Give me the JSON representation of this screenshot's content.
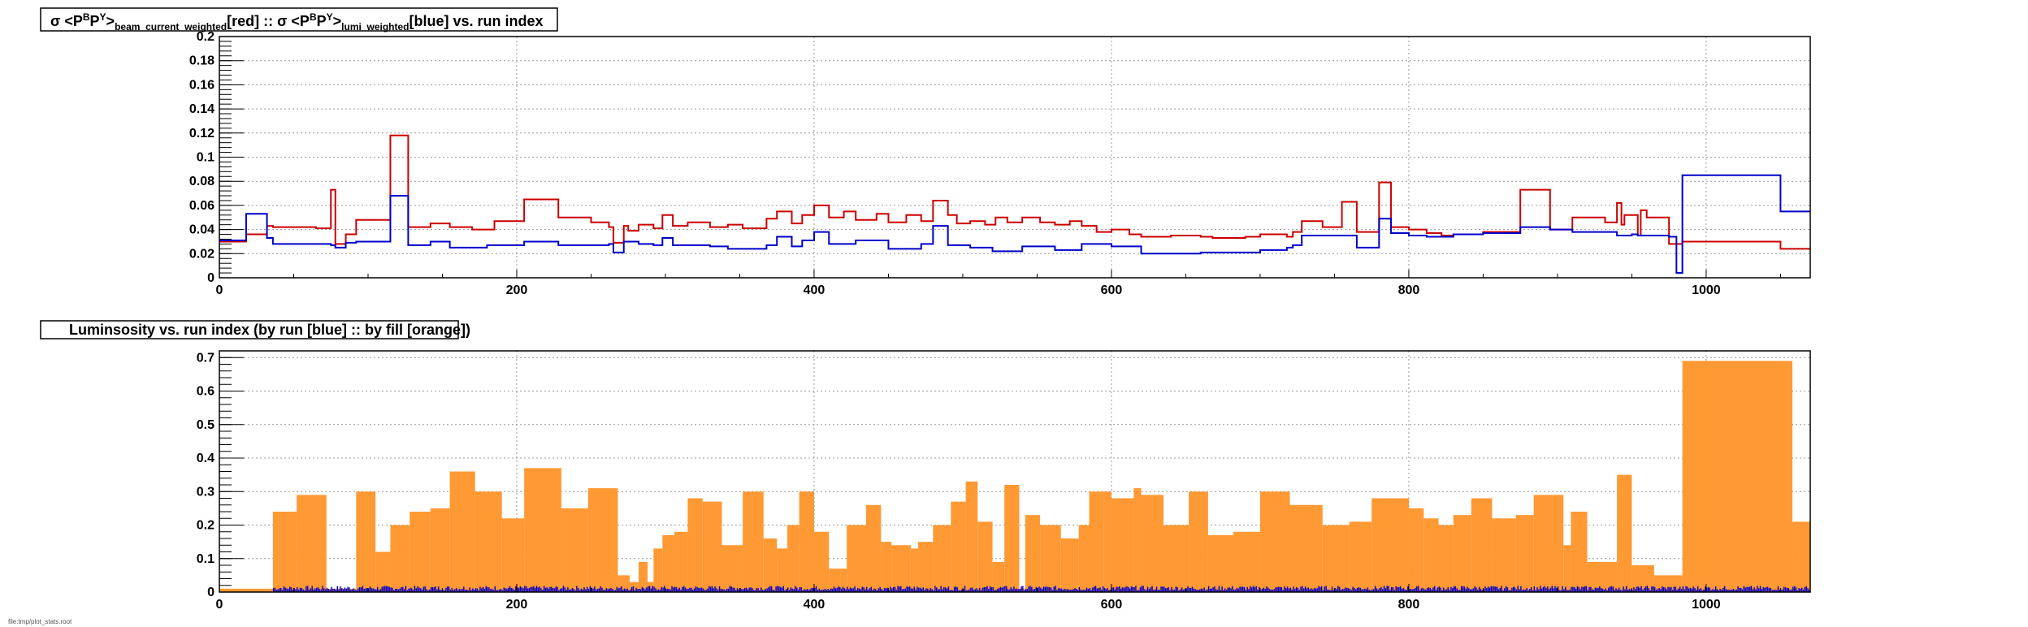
{
  "chart_data": [
    {
      "type": "line",
      "title_parts": {
        "sigma": "σ <P",
        "sup_b": "B",
        "mid": "P",
        "sup_y": "Y",
        "close1": ">",
        "sub1": "beam_current_weighted",
        "part2": "[red] :: σ <P",
        "close2": ">",
        "sub2": "lumi_weighted",
        "part3": "[blue] vs. run index"
      },
      "xlim": [
        0,
        1070
      ],
      "ylim": [
        0,
        0.2
      ],
      "x_ticks": [
        "0",
        "200",
        "400",
        "600",
        "800",
        "1000"
      ],
      "y_ticks": [
        "0",
        "0.02",
        "0.04",
        "0.06",
        "0.08",
        "0.1",
        "0.12",
        "0.14",
        "0.16",
        "0.18",
        "0.2"
      ],
      "grid": true,
      "series": [
        {
          "color": "#cc0000",
          "x": [
            0,
            18,
            32,
            36,
            50,
            65,
            75,
            78,
            85,
            92,
            115,
            127,
            142,
            155,
            170,
            185,
            205,
            228,
            250,
            262,
            265,
            272,
            275,
            282,
            292,
            298,
            305,
            315,
            330,
            342,
            352,
            368,
            375,
            385,
            392,
            400,
            410,
            420,
            428,
            442,
            450,
            462,
            472,
            480,
            490,
            496,
            505,
            515,
            522,
            530,
            540,
            552,
            562,
            572,
            580,
            590,
            600,
            612,
            620,
            640,
            660,
            668,
            690,
            700,
            718,
            722,
            728,
            742,
            755,
            765,
            780,
            788,
            800,
            812,
            822,
            830,
            850,
            875,
            895,
            910,
            932,
            940,
            943,
            945,
            954,
            956,
            960,
            975,
            978,
            984,
            990,
            1050,
            1070
          ],
          "y": [
            0.03,
            0.036,
            0.043,
            0.042,
            0.042,
            0.041,
            0.073,
            0.028,
            0.036,
            0.048,
            0.118,
            0.042,
            0.045,
            0.042,
            0.04,
            0.047,
            0.065,
            0.05,
            0.046,
            0.042,
            0.029,
            0.043,
            0.039,
            0.044,
            0.041,
            0.052,
            0.043,
            0.046,
            0.042,
            0.044,
            0.041,
            0.049,
            0.055,
            0.045,
            0.052,
            0.06,
            0.05,
            0.055,
            0.048,
            0.053,
            0.046,
            0.052,
            0.047,
            0.064,
            0.052,
            0.045,
            0.047,
            0.044,
            0.05,
            0.046,
            0.05,
            0.046,
            0.044,
            0.047,
            0.043,
            0.038,
            0.04,
            0.036,
            0.034,
            0.035,
            0.034,
            0.033,
            0.034,
            0.036,
            0.034,
            0.038,
            0.047,
            0.042,
            0.063,
            0.038,
            0.079,
            0.042,
            0.04,
            0.037,
            0.035,
            0.036,
            0.038,
            0.073,
            0.04,
            0.05,
            0.046,
            0.062,
            0.044,
            0.052,
            0.035,
            0.056,
            0.05,
            0.028,
            0.028,
            0.03,
            0.03,
            0.024,
            0.024
          ]
        },
        {
          "color": "#0000cc",
          "x": [
            0,
            18,
            32,
            36,
            75,
            78,
            85,
            92,
            115,
            127,
            142,
            155,
            180,
            205,
            228,
            262,
            265,
            272,
            282,
            292,
            298,
            305,
            330,
            342,
            368,
            375,
            385,
            392,
            400,
            410,
            428,
            450,
            472,
            480,
            490,
            505,
            520,
            540,
            562,
            580,
            600,
            620,
            660,
            700,
            718,
            722,
            728,
            765,
            780,
            788,
            800,
            812,
            830,
            850,
            875,
            895,
            910,
            940,
            950,
            954,
            975,
            980,
            984,
            990,
            1050,
            1070
          ],
          "y": [
            0.031,
            0.053,
            0.033,
            0.028,
            0.027,
            0.025,
            0.029,
            0.03,
            0.068,
            0.027,
            0.03,
            0.025,
            0.027,
            0.03,
            0.027,
            0.028,
            0.021,
            0.03,
            0.028,
            0.027,
            0.033,
            0.027,
            0.026,
            0.024,
            0.027,
            0.034,
            0.026,
            0.031,
            0.038,
            0.028,
            0.031,
            0.024,
            0.028,
            0.043,
            0.027,
            0.025,
            0.022,
            0.026,
            0.023,
            0.028,
            0.026,
            0.02,
            0.021,
            0.023,
            0.025,
            0.027,
            0.035,
            0.025,
            0.049,
            0.037,
            0.035,
            0.034,
            0.036,
            0.037,
            0.042,
            0.04,
            0.038,
            0.035,
            0.036,
            0.035,
            0.034,
            0.004,
            0.085,
            0.085,
            0.055,
            0.055
          ]
        }
      ]
    },
    {
      "type": "bar",
      "title": "Luminsosity vs. run index (by run [blue] :: by fill [orange])",
      "xlim": [
        0,
        1070
      ],
      "ylim": [
        0,
        0.72
      ],
      "x_ticks": [
        "0",
        "200",
        "400",
        "600",
        "800",
        "1000"
      ],
      "y_ticks": [
        "0",
        "0.1",
        "0.2",
        "0.3",
        "0.4",
        "0.5",
        "0.6",
        "0.7"
      ],
      "grid": true,
      "series": [
        {
          "name": "by fill",
          "color": "#ff9933",
          "x0": [
            0,
            36,
            52,
            72,
            77,
            92,
            105,
            115,
            128,
            142,
            155,
            172,
            190,
            205,
            230,
            248,
            268,
            276,
            282,
            288,
            292,
            298,
            306,
            315,
            325,
            338,
            352,
            366,
            375,
            382,
            390,
            400,
            410,
            418,
            422,
            435,
            445,
            452,
            465,
            470,
            480,
            492,
            502,
            510,
            520,
            528,
            538,
            542,
            552,
            566,
            578,
            582,
            585,
            595,
            600,
            615,
            620,
            635,
            652,
            665,
            682,
            700,
            720,
            742,
            760,
            775,
            800,
            810,
            820,
            830,
            842,
            856,
            872,
            884,
            904,
            909,
            920,
            940,
            950,
            965,
            984,
            1058,
            1070
          ],
          "x1": [
            36,
            52,
            72,
            77,
            92,
            105,
            115,
            128,
            142,
            155,
            172,
            190,
            205,
            230,
            248,
            268,
            276,
            282,
            288,
            292,
            298,
            306,
            315,
            325,
            338,
            352,
            366,
            375,
            382,
            390,
            400,
            410,
            418,
            422,
            435,
            445,
            452,
            465,
            470,
            480,
            492,
            502,
            510,
            520,
            528,
            538,
            542,
            552,
            566,
            578,
            582,
            585,
            595,
            600,
            615,
            620,
            635,
            652,
            665,
            682,
            700,
            720,
            742,
            760,
            775,
            800,
            810,
            820,
            830,
            842,
            856,
            872,
            884,
            904,
            909,
            920,
            940,
            950,
            965,
            984,
            1058,
            1070,
            1070
          ],
          "values": [
            0.01,
            0.24,
            0.29,
            0.01,
            0.01,
            0.3,
            0.12,
            0.2,
            0.24,
            0.25,
            0.36,
            0.3,
            0.22,
            0.37,
            0.25,
            0.31,
            0.05,
            0.03,
            0.09,
            0.03,
            0.13,
            0.17,
            0.18,
            0.28,
            0.27,
            0.14,
            0.3,
            0.16,
            0.13,
            0.2,
            0.3,
            0.18,
            0.07,
            0.07,
            0.2,
            0.26,
            0.15,
            0.14,
            0.13,
            0.15,
            0.2,
            0.27,
            0.33,
            0.21,
            0.09,
            0.32,
            0.01,
            0.23,
            0.2,
            0.16,
            0.2,
            0.2,
            0.3,
            0.3,
            0.28,
            0.31,
            0.29,
            0.2,
            0.3,
            0.17,
            0.18,
            0.3,
            0.26,
            0.2,
            0.21,
            0.28,
            0.25,
            0.22,
            0.2,
            0.23,
            0.28,
            0.22,
            0.23,
            0.29,
            0.14,
            0.24,
            0.09,
            0.35,
            0.08,
            0.05,
            0.69,
            0.21,
            0.21
          ]
        },
        {
          "name": "by run",
          "color": "#0000cc",
          "x_start": 36,
          "x_end": 1070,
          "typical_value": 0.015
        }
      ]
    }
  ],
  "footer": "file:tmp/plot_stats.root"
}
